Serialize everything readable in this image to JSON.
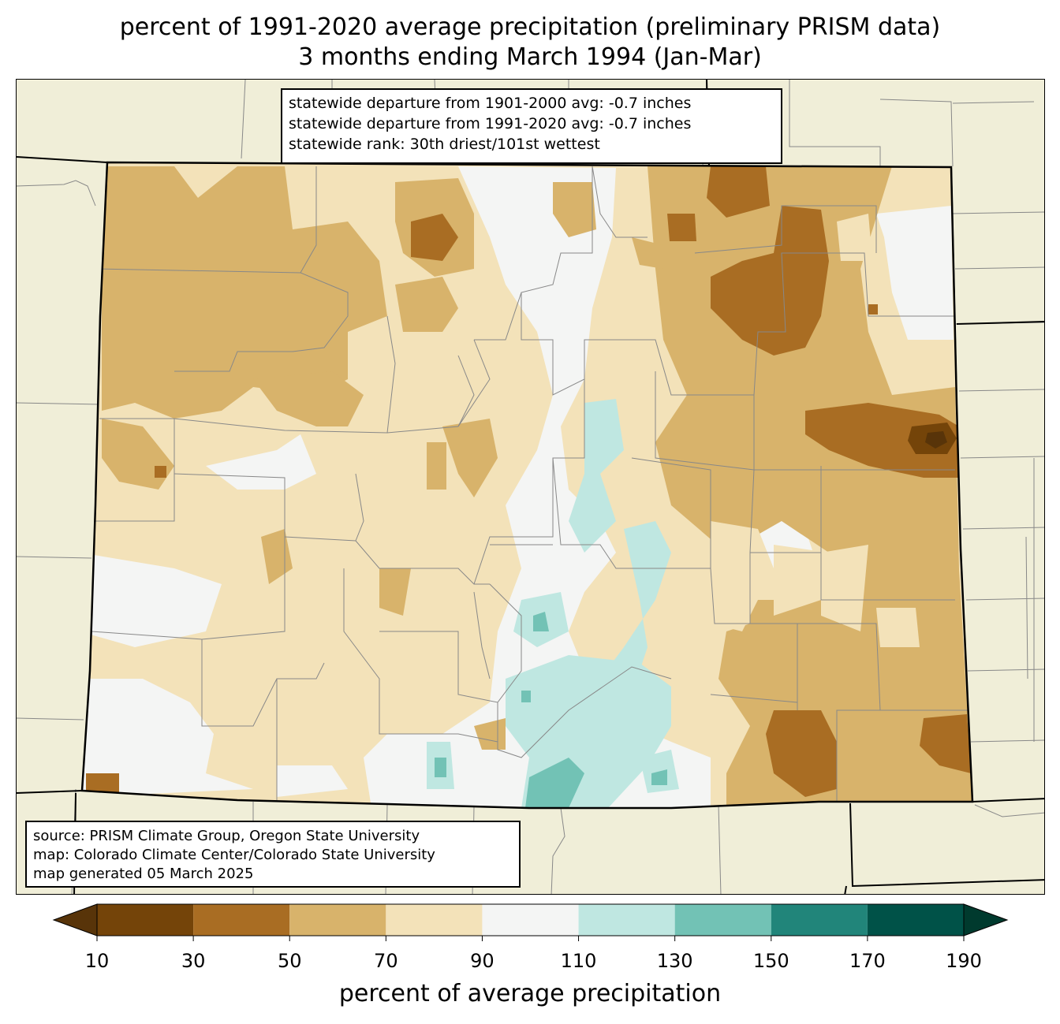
{
  "title": {
    "line1": "percent of 1991-2020 average precipitation (preliminary PRISM data)",
    "line2": "3 months ending March 1994 (Jan-Mar)"
  },
  "stats": {
    "line1": "statewide departure from 1901-2000 avg: -0.7 inches",
    "line2": "statewide departure from 1991-2020 avg: -0.7 inches",
    "line3": "statewide rank: 30th driest/101st wettest"
  },
  "credits": {
    "line1": "source: PRISM Climate Group, Oregon State University",
    "line2": "map: Colorado Climate Center/Colorado State University",
    "line3": "map generated 05 March 2025"
  },
  "colorbar": {
    "label": "percent of average precipitation",
    "ticks": [
      "10",
      "30",
      "50",
      "70",
      "90",
      "110",
      "130",
      "150",
      "170",
      "190"
    ],
    "colors": [
      "#583409",
      "#744409",
      "#a96d23",
      "#d8b36b",
      "#f3e2b9",
      "#f4f5f4",
      "#bfe7e1",
      "#72c2b5",
      "#21857a",
      "#005248",
      "#003a2e"
    ]
  },
  "map_colors": {
    "outside": "#f0eed8",
    "bin_10_30": "#744409",
    "bin_30_50": "#a96d23",
    "bin_50_70": "#d8b36b",
    "bin_70_90": "#f3e2b9",
    "bin_90_110": "#f4f5f4",
    "bin_110_130": "#bfe7e1",
    "bin_130_150": "#72c2b5"
  }
}
